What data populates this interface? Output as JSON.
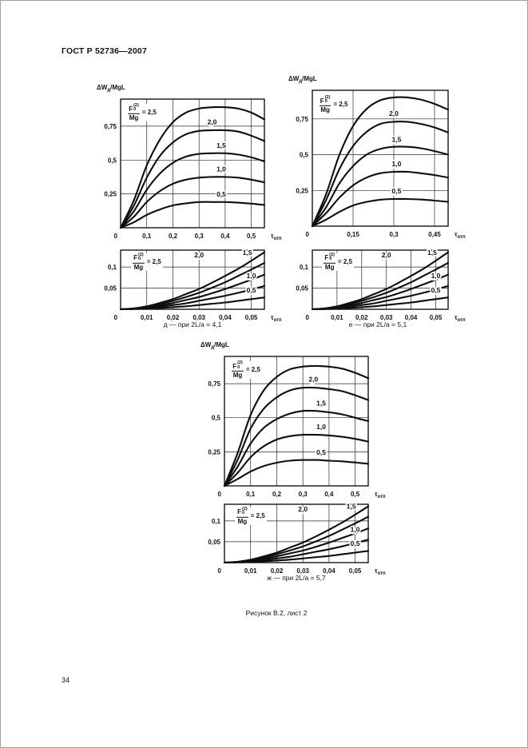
{
  "page": {
    "header": "ГОСТ Р 52736—2007",
    "figure_caption": "Рисунок В.2, лист 2",
    "page_number": "34"
  },
  "captions": [
    "д — при 2L/a = 4,1",
    "е — при 2L/a = 5,1",
    "ж — при 2L/a = 5,7"
  ],
  "axis": {
    "y_label": {
      "main": "ΔW",
      "sub": "д",
      "rest": "/MgL"
    },
    "x_label": {
      "main": "τ",
      "sub": "отп"
    },
    "ratio": {
      "f": "F",
      "sup": "(2)",
      "sub": "0",
      "den": "Mg",
      "eq": "= 2,5"
    }
  },
  "chart_data": [
    {
      "id": "d-main",
      "type": "line",
      "pair": "д",
      "ylabel_show": true,
      "x_max": 0.55,
      "y_max": 0.95,
      "origin": "0",
      "x_ticks": [
        {
          "v": 0.1,
          "t": "0,1"
        },
        {
          "v": 0.2,
          "t": "0,2"
        },
        {
          "v": 0.3,
          "t": "0,3"
        },
        {
          "v": 0.4,
          "t": "0,4"
        },
        {
          "v": 0.5,
          "t": "0,5"
        }
      ],
      "y_ticks": [
        {
          "v": 0.25,
          "t": "0,25"
        },
        {
          "v": 0.5,
          "t": "0,5"
        },
        {
          "v": 0.75,
          "t": "0,75"
        }
      ],
      "ratio_pos": {
        "x": 0.022,
        "y": 0.85
      },
      "x": [
        0,
        0.05,
        0.1,
        0.15,
        0.2,
        0.25,
        0.3,
        0.35,
        0.4,
        0.45,
        0.5,
        0.55
      ],
      "series": [
        {
          "name": "2,5",
          "y": [
            0,
            0.2,
            0.46,
            0.65,
            0.78,
            0.85,
            0.88,
            0.89,
            0.89,
            0.88,
            0.85,
            0.8
          ]
        },
        {
          "name": "2,0",
          "y": [
            0,
            0.16,
            0.37,
            0.53,
            0.63,
            0.69,
            0.715,
            0.72,
            0.72,
            0.71,
            0.68,
            0.64
          ],
          "label": {
            "x": 0.35,
            "y": 0.765
          }
        },
        {
          "name": "1,5",
          "y": [
            0,
            0.12,
            0.28,
            0.4,
            0.48,
            0.525,
            0.545,
            0.55,
            0.55,
            0.54,
            0.52,
            0.49
          ],
          "label": {
            "x": 0.385,
            "y": 0.59
          }
        },
        {
          "name": "1,0",
          "y": [
            0,
            0.08,
            0.19,
            0.27,
            0.325,
            0.355,
            0.37,
            0.375,
            0.375,
            0.37,
            0.355,
            0.335
          ],
          "label": {
            "x": 0.385,
            "y": 0.415
          }
        },
        {
          "name": "0,5",
          "y": [
            0,
            0.04,
            0.095,
            0.135,
            0.165,
            0.18,
            0.19,
            0.19,
            0.19,
            0.185,
            0.178,
            0.168
          ],
          "label": {
            "x": 0.385,
            "y": 0.23
          }
        }
      ]
    },
    {
      "id": "e-main",
      "type": "line",
      "pair": "е",
      "ylabel_show": true,
      "x_max": 0.5,
      "y_max": 0.95,
      "origin": "0",
      "x_ticks": [
        {
          "v": 0.15,
          "t": "0,15"
        },
        {
          "v": 0.3,
          "t": "0,3"
        },
        {
          "v": 0.45,
          "t": "0,45"
        }
      ],
      "y_ticks": [
        {
          "v": 0.25,
          "t": "0,25"
        },
        {
          "v": 0.5,
          "t": "0,5"
        },
        {
          "v": 0.75,
          "t": "0,75"
        }
      ],
      "ratio_pos": {
        "x": 0.02,
        "y": 0.85
      },
      "x": [
        0,
        0.05,
        0.1,
        0.15,
        0.2,
        0.25,
        0.3,
        0.35,
        0.4,
        0.45,
        0.5
      ],
      "series": [
        {
          "name": "2,5",
          "y": [
            0,
            0.22,
            0.5,
            0.7,
            0.82,
            0.88,
            0.9,
            0.9,
            0.885,
            0.855,
            0.815
          ]
        },
        {
          "name": "2,0",
          "y": [
            0,
            0.18,
            0.4,
            0.56,
            0.66,
            0.715,
            0.73,
            0.73,
            0.715,
            0.69,
            0.655
          ],
          "label": {
            "x": 0.3,
            "y": 0.77
          }
        },
        {
          "name": "1,5",
          "y": [
            0,
            0.13,
            0.3,
            0.42,
            0.5,
            0.54,
            0.555,
            0.555,
            0.545,
            0.525,
            0.5
          ],
          "label": {
            "x": 0.31,
            "y": 0.59
          }
        },
        {
          "name": "1,0",
          "y": [
            0,
            0.09,
            0.2,
            0.285,
            0.34,
            0.37,
            0.38,
            0.38,
            0.37,
            0.357,
            0.34
          ],
          "label": {
            "x": 0.31,
            "y": 0.42
          }
        },
        {
          "name": "0,5",
          "y": [
            0,
            0.045,
            0.1,
            0.145,
            0.17,
            0.185,
            0.19,
            0.19,
            0.186,
            0.179,
            0.17
          ],
          "label": {
            "x": 0.31,
            "y": 0.23
          }
        }
      ]
    },
    {
      "id": "d-detail",
      "type": "line",
      "pair": "д",
      "ylabel_show": false,
      "x_max": 0.055,
      "y_max": 0.14,
      "origin": "0",
      "x_ticks": [
        {
          "v": 0.01,
          "t": "0,01"
        },
        {
          "v": 0.02,
          "t": "0,02"
        },
        {
          "v": 0.03,
          "t": "0,03"
        },
        {
          "v": 0.04,
          "t": "0,04"
        },
        {
          "v": 0.05,
          "t": "0,05"
        }
      ],
      "y_ticks": [
        {
          "v": 0.05,
          "t": "0,05"
        },
        {
          "v": 0.1,
          "t": "0,1"
        }
      ],
      "ratio_pos": {
        "x": 0.004,
        "y": 0.112
      },
      "x": [
        0,
        0.005,
        0.01,
        0.015,
        0.02,
        0.025,
        0.03,
        0.035,
        0.04,
        0.045,
        0.05,
        0.055
      ],
      "series": [
        {
          "name": "2,5",
          "y": [
            0,
            0.002,
            0.007,
            0.015,
            0.024,
            0.036,
            0.048,
            0.063,
            0.079,
            0.096,
            0.115,
            0.135
          ]
        },
        {
          "name": "2,0",
          "y": [
            0,
            0.002,
            0.006,
            0.012,
            0.02,
            0.029,
            0.039,
            0.051,
            0.064,
            0.079,
            0.094,
            0.11
          ],
          "label": {
            "x": 0.03,
            "y": 0.123
          }
        },
        {
          "name": "1,5",
          "y": [
            0,
            0.001,
            0.005,
            0.009,
            0.015,
            0.022,
            0.029,
            0.038,
            0.048,
            0.059,
            0.07,
            0.082
          ],
          "label": {
            "x": 0.0485,
            "y": 0.129
          }
        },
        {
          "name": "1,0",
          "y": [
            0,
            0.001,
            0.003,
            0.006,
            0.01,
            0.014,
            0.02,
            0.026,
            0.032,
            0.039,
            0.047,
            0.055
          ],
          "label": {
            "x": 0.05,
            "y": 0.074
          }
        },
        {
          "name": "0,5",
          "y": [
            0,
            0.0005,
            0.0015,
            0.003,
            0.005,
            0.007,
            0.01,
            0.013,
            0.016,
            0.02,
            0.024,
            0.028
          ],
          "label": {
            "x": 0.05,
            "y": 0.04
          }
        }
      ]
    },
    {
      "id": "e-detail",
      "type": "line",
      "pair": "е",
      "ylabel_show": false,
      "x_max": 0.055,
      "y_max": 0.14,
      "origin": "0",
      "x_ticks": [
        {
          "v": 0.01,
          "t": "0,01"
        },
        {
          "v": 0.02,
          "t": "0,02"
        },
        {
          "v": 0.03,
          "t": "0,03"
        },
        {
          "v": 0.04,
          "t": "0,04"
        },
        {
          "v": 0.05,
          "t": "0,05"
        }
      ],
      "y_ticks": [
        {
          "v": 0.05,
          "t": "0,05"
        },
        {
          "v": 0.1,
          "t": "0,1"
        }
      ],
      "ratio_pos": {
        "x": 0.004,
        "y": 0.112
      },
      "x": [
        0,
        0.005,
        0.01,
        0.015,
        0.02,
        0.025,
        0.03,
        0.035,
        0.04,
        0.045,
        0.05,
        0.055
      ],
      "series": [
        {
          "name": "2,5",
          "y": [
            0,
            0.002,
            0.007,
            0.015,
            0.024,
            0.036,
            0.048,
            0.063,
            0.079,
            0.096,
            0.115,
            0.135
          ]
        },
        {
          "name": "2,0",
          "y": [
            0,
            0.002,
            0.006,
            0.012,
            0.02,
            0.029,
            0.039,
            0.051,
            0.064,
            0.079,
            0.094,
            0.11
          ],
          "label": {
            "x": 0.03,
            "y": 0.123
          }
        },
        {
          "name": "1,5",
          "y": [
            0,
            0.001,
            0.005,
            0.009,
            0.015,
            0.022,
            0.029,
            0.038,
            0.048,
            0.059,
            0.07,
            0.082
          ],
          "label": {
            "x": 0.0485,
            "y": 0.129
          }
        },
        {
          "name": "1,0",
          "y": [
            0,
            0.001,
            0.003,
            0.006,
            0.01,
            0.014,
            0.02,
            0.026,
            0.032,
            0.039,
            0.047,
            0.055
          ],
          "label": {
            "x": 0.05,
            "y": 0.074
          }
        },
        {
          "name": "0,5",
          "y": [
            0,
            0.0005,
            0.0015,
            0.003,
            0.005,
            0.007,
            0.01,
            0.013,
            0.016,
            0.02,
            0.024,
            0.028
          ],
          "label": {
            "x": 0.05,
            "y": 0.04
          }
        }
      ]
    },
    {
      "id": "zh-main",
      "type": "line",
      "pair": "ж",
      "ylabel_show": true,
      "x_max": 0.55,
      "y_max": 0.95,
      "origin": "0",
      "x_ticks": [
        {
          "v": 0.1,
          "t": "0,1"
        },
        {
          "v": 0.2,
          "t": "0,2"
        },
        {
          "v": 0.3,
          "t": "0,3"
        },
        {
          "v": 0.4,
          "t": "0,4"
        },
        {
          "v": 0.5,
          "t": "0,5"
        }
      ],
      "y_ticks": [
        {
          "v": 0.25,
          "t": "0,25"
        },
        {
          "v": 0.5,
          "t": "0,5"
        },
        {
          "v": 0.75,
          "t": "0,75"
        }
      ],
      "ratio_pos": {
        "x": 0.022,
        "y": 0.85
      },
      "x": [
        0,
        0.05,
        0.1,
        0.15,
        0.2,
        0.25,
        0.3,
        0.35,
        0.4,
        0.45,
        0.5,
        0.55
      ],
      "series": [
        {
          "name": "2,5",
          "y": [
            0,
            0.24,
            0.52,
            0.7,
            0.8,
            0.855,
            0.875,
            0.88,
            0.875,
            0.86,
            0.83,
            0.79
          ]
        },
        {
          "name": "2,0",
          "y": [
            0,
            0.19,
            0.42,
            0.565,
            0.65,
            0.7,
            0.72,
            0.72,
            0.71,
            0.695,
            0.665,
            0.63
          ],
          "label": {
            "x": 0.34,
            "y": 0.765
          }
        },
        {
          "name": "1,5",
          "y": [
            0,
            0.14,
            0.31,
            0.425,
            0.49,
            0.53,
            0.55,
            0.55,
            0.54,
            0.525,
            0.5,
            0.475
          ],
          "label": {
            "x": 0.37,
            "y": 0.59
          }
        },
        {
          "name": "1,0",
          "y": [
            0,
            0.095,
            0.21,
            0.29,
            0.34,
            0.365,
            0.375,
            0.375,
            0.37,
            0.36,
            0.345,
            0.325
          ],
          "label": {
            "x": 0.37,
            "y": 0.415
          }
        },
        {
          "name": "0,5",
          "y": [
            0,
            0.05,
            0.105,
            0.145,
            0.17,
            0.185,
            0.19,
            0.19,
            0.185,
            0.18,
            0.172,
            0.162
          ],
          "label": {
            "x": 0.37,
            "y": 0.23
          }
        }
      ]
    },
    {
      "id": "zh-detail",
      "type": "line",
      "pair": "ж",
      "ylabel_show": false,
      "x_max": 0.055,
      "y_max": 0.14,
      "origin": "0",
      "x_ticks": [
        {
          "v": 0.01,
          "t": "0,01"
        },
        {
          "v": 0.02,
          "t": "0,02"
        },
        {
          "v": 0.03,
          "t": "0,03"
        },
        {
          "v": 0.04,
          "t": "0,04"
        },
        {
          "v": 0.05,
          "t": "0,05"
        }
      ],
      "y_ticks": [
        {
          "v": 0.05,
          "t": "0,05"
        },
        {
          "v": 0.1,
          "t": "0,1"
        }
      ],
      "ratio_pos": {
        "x": 0.004,
        "y": 0.112
      },
      "x": [
        0,
        0.005,
        0.01,
        0.015,
        0.02,
        0.025,
        0.03,
        0.035,
        0.04,
        0.045,
        0.05,
        0.055
      ],
      "series": [
        {
          "name": "2,5",
          "y": [
            0,
            0.002,
            0.007,
            0.015,
            0.024,
            0.036,
            0.048,
            0.063,
            0.079,
            0.096,
            0.115,
            0.135
          ]
        },
        {
          "name": "2,0",
          "y": [
            0,
            0.002,
            0.006,
            0.012,
            0.02,
            0.029,
            0.039,
            0.051,
            0.064,
            0.079,
            0.094,
            0.11
          ],
          "label": {
            "x": 0.03,
            "y": 0.123
          }
        },
        {
          "name": "1,5",
          "y": [
            0,
            0.001,
            0.005,
            0.009,
            0.015,
            0.022,
            0.029,
            0.038,
            0.048,
            0.059,
            0.07,
            0.082
          ],
          "label": {
            "x": 0.0485,
            "y": 0.129
          }
        },
        {
          "name": "1,0",
          "y": [
            0,
            0.001,
            0.003,
            0.006,
            0.01,
            0.014,
            0.02,
            0.026,
            0.032,
            0.039,
            0.047,
            0.055
          ],
          "label": {
            "x": 0.05,
            "y": 0.074
          }
        },
        {
          "name": "0,5",
          "y": [
            0,
            0.0005,
            0.0015,
            0.003,
            0.005,
            0.007,
            0.01,
            0.013,
            0.016,
            0.02,
            0.024,
            0.028
          ],
          "label": {
            "x": 0.05,
            "y": 0.04
          }
        }
      ]
    }
  ]
}
